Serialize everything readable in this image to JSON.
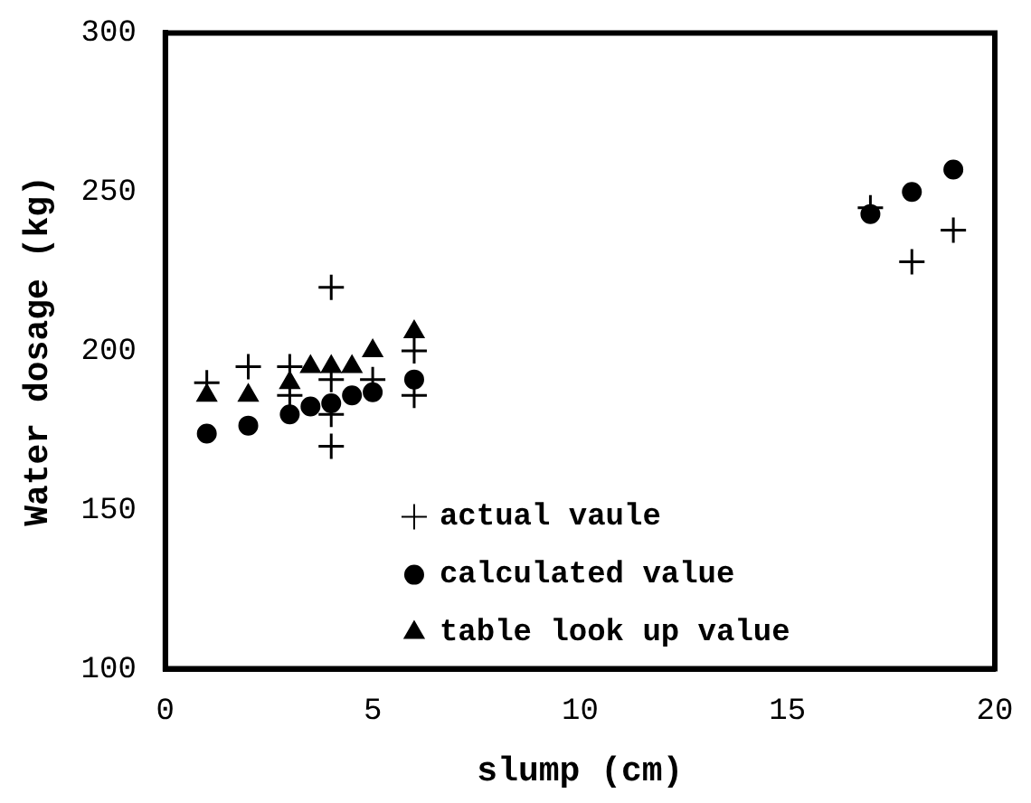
{
  "chart_data": {
    "type": "scatter",
    "xlabel": "slump (cm)",
    "ylabel": "Water dosage (kg)",
    "xlim": [
      0,
      20
    ],
    "xticks": [
      0,
      5,
      10,
      15,
      20
    ],
    "ylim": [
      100,
      300
    ],
    "yticks": [
      100,
      150,
      200,
      250,
      300
    ],
    "grid": false,
    "legend": "bottom",
    "series": [
      {
        "name": "actual vaule",
        "color": "#000000",
        "marker": "cross",
        "x": [
          1,
          2,
          3,
          3,
          4,
          4,
          4,
          4,
          5,
          6,
          6,
          17,
          18,
          19
        ],
        "values": [
          190,
          195,
          195,
          186,
          220,
          191,
          180,
          170,
          191,
          200,
          186,
          245,
          228,
          238
        ]
      },
      {
        "name": "calculated value",
        "color": "#000000",
        "marker": "circle",
        "x": [
          1,
          2,
          3,
          3.5,
          4,
          4.5,
          5,
          6,
          17,
          18,
          19
        ],
        "values": [
          174,
          176.5,
          180,
          182.5,
          183.5,
          186,
          187,
          191,
          243,
          250,
          257
        ]
      },
      {
        "name": "table look up value",
        "color": "#000000",
        "marker": "triangle",
        "x": [
          1,
          2,
          3,
          3.5,
          4,
          4.5,
          5,
          6
        ],
        "values": [
          186,
          186,
          190,
          195,
          195,
          195,
          200,
          206
        ]
      }
    ]
  }
}
